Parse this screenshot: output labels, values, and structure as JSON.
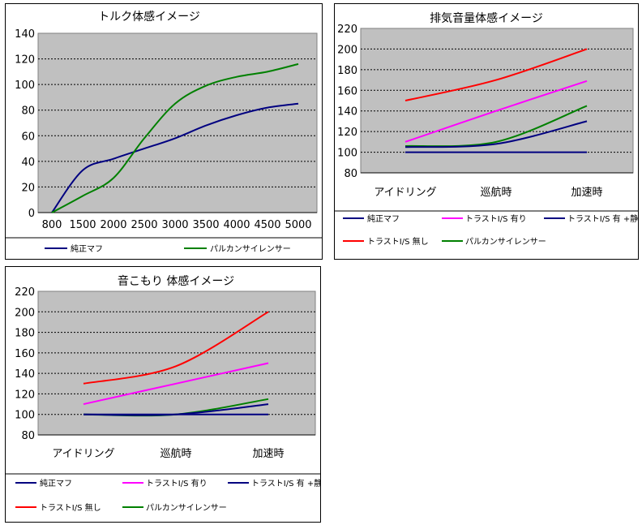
{
  "chart_data": [
    {
      "type": "line",
      "title": "トルク体感イメージ",
      "x": [
        "800",
        "1500",
        "2000",
        "2500",
        "3000",
        "3500",
        "4000",
        "4500",
        "5000"
      ],
      "ylim": [
        0,
        140
      ],
      "yticks": [
        "0",
        "20",
        "40",
        "60",
        "80",
        "100",
        "120",
        "140"
      ],
      "grid": true,
      "legend_position": "bottom",
      "series": [
        {
          "name": "純正マフ",
          "color": "#000080",
          "values": [
            0,
            33,
            42,
            50,
            58,
            68,
            76,
            82,
            85
          ]
        },
        {
          "name": "パルカンサイレンサー",
          "color": "#008000",
          "values": [
            0,
            13,
            27,
            58,
            85,
            99,
            106,
            110,
            116
          ]
        }
      ]
    },
    {
      "type": "line",
      "title": "排気音量体感イメージ",
      "categories": [
        "アイドリング",
        "巡航時",
        "加速時"
      ],
      "ylim": [
        80,
        220
      ],
      "yticks": [
        "80",
        "100",
        "120",
        "140",
        "160",
        "180",
        "200",
        "220"
      ],
      "grid": true,
      "legend_position": "bottom",
      "series": [
        {
          "name": "純正マフ",
          "color": "#000080",
          "values": [
            100,
            100,
            100
          ]
        },
        {
          "name": "トラストI/S 無し",
          "color": "#FF0000",
          "values": [
            150,
            170,
            200
          ]
        },
        {
          "name": "トラストI/S 有り",
          "color": "#FF00FF",
          "values": [
            110,
            140,
            169
          ]
        },
        {
          "name": "パルカンサイレンサー",
          "color": "#008000",
          "values": [
            106,
            110,
            145
          ]
        },
        {
          "name": "トラストI/S 有 +静音パイプ",
          "color": "#000080",
          "values": [
            105,
            108,
            130
          ]
        }
      ]
    },
    {
      "type": "line",
      "title": "音こもり 体感イメージ",
      "categories": [
        "アイドリング",
        "巡航時",
        "加速時"
      ],
      "ylim": [
        80,
        220
      ],
      "yticks": [
        "80",
        "100",
        "120",
        "140",
        "160",
        "180",
        "200",
        "220"
      ],
      "grid": true,
      "legend_position": "bottom",
      "series": [
        {
          "name": "純正マフ",
          "color": "#000080",
          "values": [
            100,
            100,
            100
          ]
        },
        {
          "name": "トラストI/S 無し",
          "color": "#FF0000",
          "values": [
            130,
            147,
            200
          ]
        },
        {
          "name": "トラストI/S 有り",
          "color": "#FF00FF",
          "values": [
            110,
            130,
            150
          ]
        },
        {
          "name": "パルカンサイレンサー",
          "color": "#008000",
          "values": [
            100,
            100,
            115
          ]
        },
        {
          "name": "トラストI/S 有 +静音パイプ",
          "color": "#000080",
          "values": [
            100,
            100,
            110
          ]
        }
      ]
    }
  ]
}
